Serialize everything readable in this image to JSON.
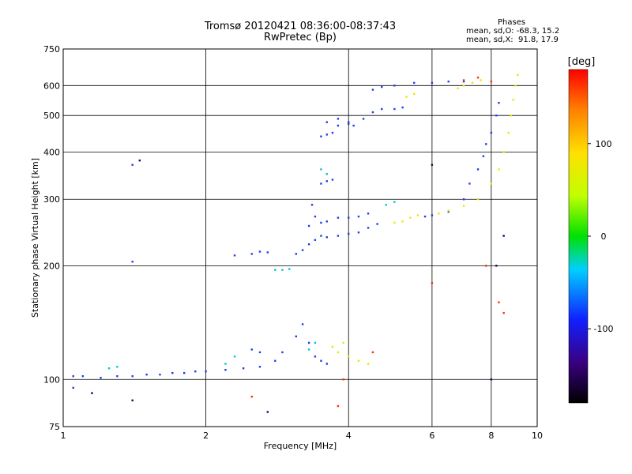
{
  "chart_data": {
    "type": "scatter",
    "title": "Tromsø 20120421 08:36:00-08:37:43",
    "subtitle": "RwPretec (Bp)",
    "xlabel": "Frequency [MHz]",
    "ylabel": "Stationary phase Virtual Height [km]",
    "x_scale": "log",
    "y_scale": "log",
    "xlim": [
      1,
      10
    ],
    "ylim": [
      75,
      750
    ],
    "x_ticks": [
      1,
      2,
      4,
      6,
      8,
      10
    ],
    "y_ticks": [
      75,
      100,
      200,
      300,
      400,
      500,
      600,
      750
    ],
    "grid": true,
    "phase_legend": {
      "title": "Phases",
      "line_o": "mean, sd,O: -68.3, 15.2",
      "line_x": "mean, sd,X:  91.8, 17.9"
    },
    "colorbar": {
      "label": "[deg]",
      "range": [
        -180,
        180
      ],
      "ticks": [
        "100",
        "0",
        "-100"
      ],
      "tick_values": [
        100,
        0,
        -100
      ]
    },
    "series": [
      {
        "color_phase": -100,
        "color": "#1f3fe8",
        "points": [
          [
            1.05,
            102
          ],
          [
            1.1,
            102
          ],
          [
            1.2,
            101
          ],
          [
            1.3,
            102
          ],
          [
            1.4,
            102
          ],
          [
            1.5,
            103
          ],
          [
            1.6,
            103
          ],
          [
            1.7,
            104
          ],
          [
            1.8,
            104
          ],
          [
            1.9,
            105
          ],
          [
            2.0,
            105
          ],
          [
            2.2,
            106
          ],
          [
            2.4,
            107
          ],
          [
            2.6,
            108
          ],
          [
            2.8,
            112
          ],
          [
            2.9,
            118
          ],
          [
            2.3,
            213
          ],
          [
            2.5,
            215
          ],
          [
            2.6,
            218
          ],
          [
            2.7,
            217
          ],
          [
            3.1,
            215
          ],
          [
            3.2,
            220
          ],
          [
            3.3,
            228
          ],
          [
            3.4,
            234
          ],
          [
            3.5,
            240
          ],
          [
            3.6,
            238
          ],
          [
            3.8,
            240
          ],
          [
            4.0,
            243
          ],
          [
            4.2,
            245
          ],
          [
            4.4,
            252
          ],
          [
            4.6,
            258
          ],
          [
            3.3,
            255
          ],
          [
            3.35,
            290
          ],
          [
            3.4,
            270
          ],
          [
            3.5,
            260
          ],
          [
            3.6,
            262
          ],
          [
            3.8,
            268
          ],
          [
            4.0,
            268
          ],
          [
            4.2,
            270
          ],
          [
            4.4,
            275
          ],
          [
            3.5,
            330
          ],
          [
            3.6,
            335
          ],
          [
            3.7,
            338
          ],
          [
            3.5,
            440
          ],
          [
            3.6,
            445
          ],
          [
            3.7,
            450
          ],
          [
            3.8,
            470
          ],
          [
            4.0,
            475
          ],
          [
            4.1,
            470
          ],
          [
            4.3,
            490
          ],
          [
            4.5,
            510
          ],
          [
            4.7,
            520
          ],
          [
            5.0,
            520
          ],
          [
            5.2,
            525
          ],
          [
            3.6,
            480
          ],
          [
            3.8,
            490
          ],
          [
            4.0,
            480
          ],
          [
            4.5,
            585
          ],
          [
            4.7,
            595
          ],
          [
            5.0,
            600
          ],
          [
            5.5,
            610
          ],
          [
            6.0,
            610
          ],
          [
            6.5,
            615
          ],
          [
            7.0,
            615
          ],
          [
            5.8,
            270
          ],
          [
            6.0,
            272
          ],
          [
            6.5,
            278
          ],
          [
            7.0,
            300
          ],
          [
            7.2,
            330
          ],
          [
            7.5,
            360
          ],
          [
            7.7,
            390
          ],
          [
            7.8,
            420
          ],
          [
            8.0,
            450
          ],
          [
            8.2,
            500
          ],
          [
            8.3,
            540
          ],
          [
            3.1,
            130
          ],
          [
            3.2,
            140
          ],
          [
            3.3,
            125
          ],
          [
            3.4,
            115
          ],
          [
            3.5,
            112
          ],
          [
            3.6,
            110
          ],
          [
            2.5,
            120
          ],
          [
            2.6,
            118
          ],
          [
            1.4,
            205
          ],
          [
            1.4,
            370
          ],
          [
            1.05,
            95
          ]
        ]
      },
      {
        "color_phase": 100,
        "color": "#e8e800",
        "points": [
          [
            3.8,
            118
          ],
          [
            4.0,
            115
          ],
          [
            4.2,
            112
          ],
          [
            4.4,
            110
          ],
          [
            3.7,
            122
          ],
          [
            3.9,
            125
          ],
          [
            5.0,
            260
          ],
          [
            5.2,
            262
          ],
          [
            5.4,
            268
          ],
          [
            5.6,
            272
          ],
          [
            6.2,
            275
          ],
          [
            6.5,
            280
          ],
          [
            7.0,
            288
          ],
          [
            7.5,
            300
          ],
          [
            8.0,
            330
          ],
          [
            8.3,
            360
          ],
          [
            8.5,
            400
          ],
          [
            8.7,
            450
          ],
          [
            8.8,
            500
          ],
          [
            8.9,
            550
          ],
          [
            9.0,
            600
          ],
          [
            9.1,
            640
          ],
          [
            6.8,
            590
          ],
          [
            7.0,
            600
          ],
          [
            7.3,
            610
          ],
          [
            7.6,
            620
          ],
          [
            5.3,
            560
          ],
          [
            5.5,
            570
          ]
        ]
      },
      {
        "color_phase": 0,
        "color": "#00c8d0",
        "points": [
          [
            2.8,
            195
          ],
          [
            2.9,
            195
          ],
          [
            3.0,
            196
          ],
          [
            1.25,
            107
          ],
          [
            1.3,
            108
          ],
          [
            3.3,
            120
          ],
          [
            3.4,
            125
          ],
          [
            2.2,
            110
          ],
          [
            2.3,
            115
          ],
          [
            4.8,
            290
          ],
          [
            5.0,
            295
          ],
          [
            3.5,
            360
          ],
          [
            3.6,
            350
          ]
        ]
      },
      {
        "color_phase": 150,
        "color": "#ff3000",
        "points": [
          [
            7.0,
            620
          ],
          [
            7.5,
            630
          ],
          [
            8.0,
            615
          ],
          [
            7.8,
            200
          ],
          [
            8.3,
            160
          ],
          [
            8.5,
            150
          ],
          [
            6.0,
            180
          ],
          [
            3.8,
            85
          ],
          [
            3.9,
            100
          ],
          [
            4.5,
            118
          ],
          [
            2.5,
            90
          ]
        ]
      },
      {
        "color_phase": -150,
        "color": "#200060",
        "points": [
          [
            1.45,
            380
          ],
          [
            6.0,
            370
          ],
          [
            8.5,
            240
          ],
          [
            8.2,
            200
          ],
          [
            1.4,
            88
          ],
          [
            1.15,
            92
          ],
          [
            2.7,
            82
          ],
          [
            8.0,
            100
          ]
        ]
      }
    ]
  }
}
